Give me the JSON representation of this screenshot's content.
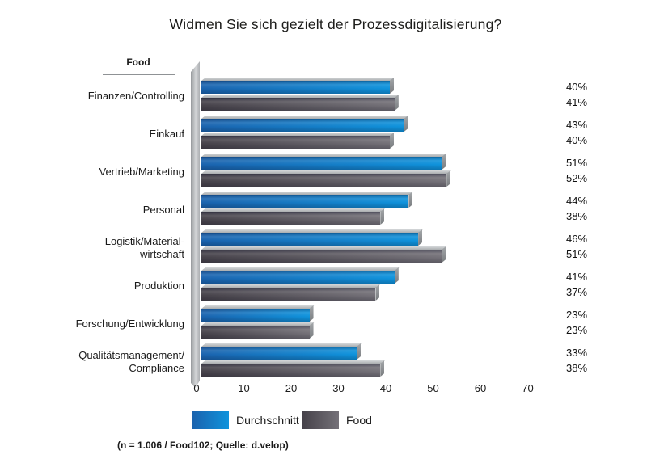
{
  "category_column_header": "Food",
  "footer_note": "(n = 1.006 / Food102; Quelle: d.velop)",
  "colors": {
    "bar_blue_start": "#1b63ae",
    "bar_blue_end": "#0f93dc",
    "bar_gray_start": "#46424a",
    "bar_gray_end": "#747178",
    "cap_top": "#d6d8da",
    "cap_side": "#797c7f",
    "wall_gray": "#b7babc"
  },
  "chart_data": {
    "type": "bar",
    "orientation": "horizontal",
    "title": "Widmen Sie sich gezielt der Prozessdigitalisierung?",
    "categories": [
      "Finanzen/Controlling",
      "Einkauf",
      "Vertrieb/Marketing",
      "Personal",
      "Logistik/Materialwirtschaft",
      "Produktion",
      "Forschung/Entwicklung",
      "Qualitätsmanagement/Compliance"
    ],
    "category_display_lines": [
      [
        "Finanzen/Controlling"
      ],
      [
        "Einkauf"
      ],
      [
        "Vertrieb/Marketing"
      ],
      [
        "Personal"
      ],
      [
        "Logistik/Material-",
        "wirtschaft"
      ],
      [
        "Produktion"
      ],
      [
        "Forschung/Entwicklung"
      ],
      [
        "Qualitätsmanagement/",
        "Compliance"
      ]
    ],
    "series": [
      {
        "name": "Durchschnitt",
        "values": [
          40,
          43,
          51,
          44,
          46,
          41,
          23,
          33
        ]
      },
      {
        "name": "Food",
        "values": [
          41,
          40,
          52,
          38,
          51,
          37,
          23,
          38
        ]
      }
    ],
    "value_label_format": "percent",
    "xlabel": "",
    "ylabel": "",
    "xlim": [
      0,
      70
    ],
    "xticks": [
      0,
      10,
      20,
      30,
      40,
      50,
      60,
      70
    ],
    "grid": false,
    "legend_position": "bottom"
  }
}
